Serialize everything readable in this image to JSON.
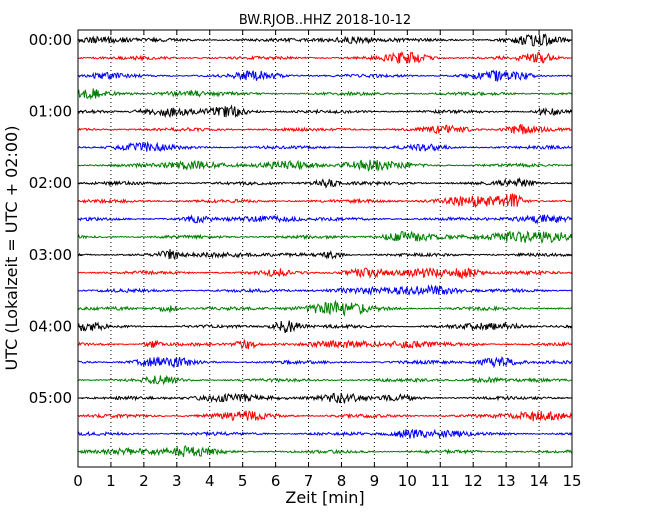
{
  "chart_data": {
    "type": "line",
    "title": "BW.RJOB..HHZ 2018-10-12",
    "xlabel": "Zeit  [min]",
    "ylabel": "UTC (Lokalzeit = UTC + 02:00)",
    "xlim": [
      0,
      15
    ],
    "x_ticks": [
      "0",
      "1",
      "2",
      "3",
      "4",
      "5",
      "6",
      "7",
      "8",
      "9",
      "10",
      "11",
      "12",
      "13",
      "14",
      "15"
    ],
    "y_ticks": [
      {
        "label": "00:00",
        "row": 0
      },
      {
        "label": "01:00",
        "row": 4
      },
      {
        "label": "02:00",
        "row": 8
      },
      {
        "label": "03:00",
        "row": 12
      },
      {
        "label": "04:00",
        "row": 16
      },
      {
        "label": "05:00",
        "row": 20
      }
    ],
    "trace_count": 24,
    "trace_interval_min": 15,
    "colors": [
      "#000000",
      "#ff0000",
      "#0000ff",
      "#008000"
    ],
    "grid": "vertical dotted",
    "legend": "none"
  }
}
